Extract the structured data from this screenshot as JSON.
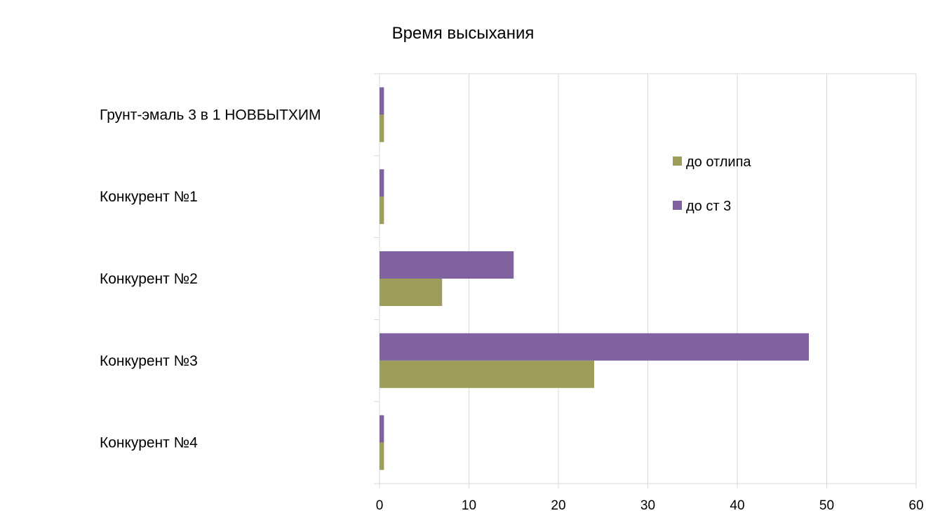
{
  "chart_data": {
    "type": "bar",
    "orientation": "horizontal",
    "title": "Время высыхания",
    "xlabel": "",
    "ylabel": "",
    "categories": [
      "Грунт-эмаль 3 в 1 НОВБЫТХИМ",
      "Конкурент №1",
      "Конкурент №2",
      "Конкурент №3",
      "Конкурент №4"
    ],
    "series": [
      {
        "name": "до отлипа",
        "color": "#9e9e5a",
        "values": [
          0.5,
          0.5,
          7,
          24,
          0.5
        ]
      },
      {
        "name": "до ст 3",
        "color": "#8062a0",
        "values": [
          0.5,
          0.5,
          15,
          48,
          0.5
        ]
      }
    ],
    "xlim": [
      0,
      60
    ],
    "xticks": [
      0,
      10,
      20,
      30,
      40,
      50,
      60
    ],
    "grid": true,
    "legend_position": "right"
  }
}
